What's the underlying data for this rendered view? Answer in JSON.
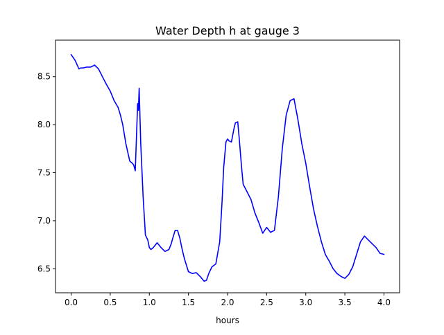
{
  "chart_data": {
    "type": "line",
    "title": "Water Depth h at gauge 3",
    "xlabel": "hours",
    "ylabel": "",
    "xlim": [
      -0.2,
      4.2
    ],
    "ylim": [
      6.25,
      8.88
    ],
    "x_ticks": [
      0.0,
      0.5,
      1.0,
      1.5,
      2.0,
      2.5,
      3.0,
      3.5,
      4.0
    ],
    "x_tick_labels": [
      "0.0",
      "0.5",
      "1.0",
      "1.5",
      "2.0",
      "2.5",
      "3.0",
      "3.5",
      "4.0"
    ],
    "y_ticks": [
      6.5,
      7.0,
      7.5,
      8.0,
      8.5
    ],
    "y_tick_labels": [
      "6.5",
      "7.0",
      "7.5",
      "8.0",
      "8.5"
    ],
    "grid": false,
    "legend": "none",
    "series": [
      {
        "color": "#0000ff",
        "x": [
          0.0,
          0.05,
          0.1,
          0.12,
          0.15,
          0.2,
          0.25,
          0.3,
          0.35,
          0.4,
          0.45,
          0.5,
          0.55,
          0.6,
          0.63,
          0.66,
          0.7,
          0.75,
          0.78,
          0.8,
          0.82,
          0.85,
          0.86,
          0.87,
          0.88,
          0.89,
          0.9,
          0.92,
          0.95,
          0.98,
          1.0,
          1.02,
          1.05,
          1.1,
          1.15,
          1.2,
          1.25,
          1.28,
          1.3,
          1.33,
          1.36,
          1.39,
          1.42,
          1.45,
          1.5,
          1.55,
          1.6,
          1.65,
          1.7,
          1.73,
          1.76,
          1.8,
          1.85,
          1.9,
          1.93,
          1.95,
          1.98,
          2.0,
          2.02,
          2.05,
          2.08,
          2.1,
          2.13,
          2.15,
          2.18,
          2.2,
          2.25,
          2.3,
          2.35,
          2.4,
          2.45,
          2.5,
          2.55,
          2.6,
          2.65,
          2.7,
          2.75,
          2.8,
          2.85,
          2.9,
          2.95,
          3.0,
          3.05,
          3.1,
          3.15,
          3.2,
          3.25,
          3.3,
          3.35,
          3.4,
          3.45,
          3.5,
          3.55,
          3.6,
          3.65,
          3.7,
          3.75,
          3.8,
          3.85,
          3.9,
          3.95,
          4.0
        ],
        "y": [
          8.73,
          8.67,
          8.58,
          8.59,
          8.59,
          8.6,
          8.6,
          8.62,
          8.58,
          8.5,
          8.42,
          8.35,
          8.25,
          8.18,
          8.1,
          8.0,
          7.8,
          7.62,
          7.6,
          7.58,
          7.52,
          8.22,
          8.15,
          8.38,
          8.1,
          7.8,
          7.62,
          7.25,
          6.85,
          6.8,
          6.72,
          6.7,
          6.72,
          6.77,
          6.72,
          6.68,
          6.7,
          6.76,
          6.82,
          6.9,
          6.9,
          6.82,
          6.7,
          6.6,
          6.47,
          6.45,
          6.46,
          6.42,
          6.37,
          6.38,
          6.45,
          6.52,
          6.55,
          6.78,
          7.2,
          7.55,
          7.82,
          7.85,
          7.83,
          7.82,
          7.95,
          8.02,
          8.03,
          7.85,
          7.55,
          7.38,
          7.3,
          7.22,
          7.08,
          6.98,
          6.87,
          6.93,
          6.88,
          6.9,
          7.25,
          7.75,
          8.1,
          8.25,
          8.27,
          8.05,
          7.8,
          7.6,
          7.35,
          7.12,
          6.94,
          6.78,
          6.65,
          6.58,
          6.5,
          6.45,
          6.42,
          6.4,
          6.44,
          6.52,
          6.65,
          6.78,
          6.84,
          6.8,
          6.76,
          6.72,
          6.66,
          6.65
        ]
      }
    ]
  }
}
